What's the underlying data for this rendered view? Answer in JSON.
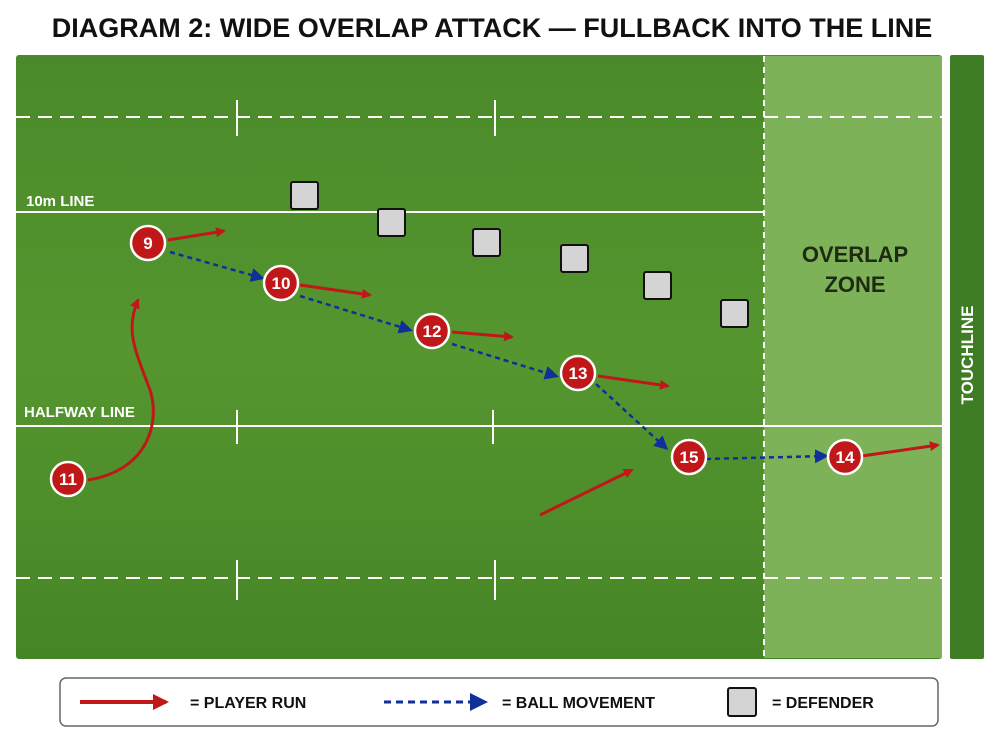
{
  "title": "DIAGRAM 2: WIDE OVERLAP ATTACK — FULLBACK INTO THE LINE",
  "field": {
    "line_10m_label": "10m LINE",
    "halfway_label": "HALFWAY LINE",
    "overlap_zone_label_1": "OVERLAP",
    "overlap_zone_label_2": "ZONE",
    "touchline_label": "TOUCHLINE"
  },
  "players": [
    {
      "number": "9"
    },
    {
      "number": "10"
    },
    {
      "number": "12"
    },
    {
      "number": "13"
    },
    {
      "number": "15"
    },
    {
      "number": "14"
    },
    {
      "number": "11"
    }
  ],
  "legend": {
    "player_run": "= PLAYER RUN",
    "ball_movement": "= BALL MOVEMENT",
    "defender": "= DEFENDER"
  },
  "colors": {
    "field_green": "#4b8a2a",
    "overlap_zone": "#7db259",
    "player_red": "#c01818",
    "ball_blue": "#0f2f9a",
    "defender_gray": "#d4d4d4"
  }
}
